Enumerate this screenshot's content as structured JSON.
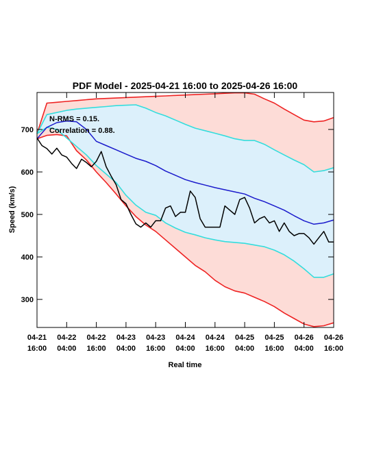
{
  "chart_data": {
    "type": "line",
    "title": "PDF Model - 2025-04-21 16:00 to 2025-04-26 16:00",
    "xlabel": "Real time",
    "ylabel": "Speed (km/s)",
    "annotations": [
      "N-RMS = 0.15.",
      "Correlation = 0.88."
    ],
    "xlim": [
      0,
      120
    ],
    "xticks": [
      {
        "value": 0,
        "label": "04-21 16:00"
      },
      {
        "value": 12,
        "label": "04-22 04:00"
      },
      {
        "value": 24,
        "label": "04-22 16:00"
      },
      {
        "value": 36,
        "label": "04-23 04:00"
      },
      {
        "value": 48,
        "label": "04-23 16:00"
      },
      {
        "value": 60,
        "label": "04-24 04:00"
      },
      {
        "value": 72,
        "label": "04-24 16:00"
      },
      {
        "value": 84,
        "label": "04-25 04:00"
      },
      {
        "value": 96,
        "label": "04-25 16:00"
      },
      {
        "value": 108,
        "label": "04-26 04:00"
      },
      {
        "value": 120,
        "label": "04-26 16:00"
      }
    ],
    "ylim": [
      234,
      787
    ],
    "yticks": [
      300,
      400,
      500,
      600,
      700
    ],
    "bands": [
      {
        "fill": "#fddcd7",
        "color": "#ee2222",
        "x": [
          0,
          4,
          8,
          12,
          16,
          20,
          24,
          28,
          32,
          36,
          40,
          44,
          48,
          52,
          56,
          60,
          64,
          68,
          72,
          76,
          80,
          84,
          88,
          92,
          96,
          100,
          104,
          108,
          112,
          116,
          120
        ],
        "upper": [
          690,
          762,
          764,
          766,
          768,
          770,
          772,
          773,
          774,
          775,
          776,
          777,
          778,
          779,
          780,
          781,
          782,
          783,
          784,
          785,
          786,
          786,
          783,
          772,
          762,
          748,
          735,
          722,
          718,
          720,
          728
        ],
        "lower": [
          678,
          686,
          688,
          685,
          650,
          628,
          600,
          575,
          548,
          520,
          495,
          475,
          460,
          440,
          420,
          400,
          380,
          365,
          345,
          330,
          320,
          315,
          305,
          295,
          283,
          268,
          255,
          242,
          236,
          238,
          245
        ]
      },
      {
        "fill": "#dcf0fb",
        "color": "#33dddd",
        "x": [
          0,
          4,
          8,
          12,
          16,
          20,
          24,
          28,
          32,
          36,
          40,
          44,
          48,
          52,
          56,
          60,
          64,
          68,
          72,
          76,
          80,
          84,
          88,
          92,
          96,
          100,
          104,
          108,
          112,
          116,
          120
        ],
        "upper": [
          690,
          735,
          740,
          745,
          748,
          750,
          752,
          754,
          756,
          757,
          758,
          750,
          740,
          732,
          722,
          712,
          703,
          697,
          691,
          685,
          678,
          674,
          674,
          665,
          652,
          640,
          628,
          617,
          600,
          603,
          610
        ],
        "lower": [
          690,
          705,
          700,
          680,
          660,
          640,
          615,
          595,
          575,
          545,
          522,
          505,
          498,
          480,
          468,
          458,
          452,
          445,
          440,
          436,
          434,
          432,
          428,
          424,
          416,
          405,
          390,
          372,
          352,
          352,
          360
        ]
      }
    ],
    "series": [
      {
        "color": "#1a1acc",
        "x": [
          0,
          4,
          8,
          12,
          16,
          20,
          24,
          28,
          32,
          36,
          40,
          44,
          48,
          52,
          56,
          60,
          64,
          68,
          72,
          76,
          80,
          84,
          88,
          92,
          96,
          100,
          104,
          108,
          112,
          116,
          120
        ],
        "values": [
          678,
          705,
          716,
          720,
          718,
          700,
          672,
          662,
          652,
          642,
          632,
          625,
          615,
          602,
          592,
          582,
          575,
          569,
          563,
          558,
          553,
          548,
          538,
          530,
          520,
          510,
          497,
          485,
          477,
          480,
          487
        ]
      },
      {
        "color": "#000000",
        "x": [
          0,
          2,
          4,
          6,
          8,
          10,
          12,
          14,
          16,
          18,
          20,
          22,
          24,
          26,
          28,
          30,
          32,
          34,
          36,
          38,
          40,
          42,
          44,
          46,
          48,
          50,
          52,
          54,
          56,
          58,
          60,
          62,
          64,
          66,
          68,
          70,
          72,
          74,
          76,
          78,
          80,
          82,
          84,
          86,
          88,
          90,
          92,
          94,
          96,
          98,
          100,
          102,
          104,
          106,
          108,
          110,
          112,
          114,
          116,
          118,
          120
        ],
        "values": [
          680,
          662,
          655,
          642,
          656,
          640,
          635,
          620,
          608,
          630,
          622,
          612,
          625,
          648,
          612,
          590,
          570,
          535,
          525,
          500,
          478,
          470,
          480,
          470,
          485,
          485,
          515,
          520,
          495,
          505,
          505,
          555,
          540,
          490,
          470,
          470,
          470,
          470,
          520,
          510,
          500,
          535,
          540,
          515,
          480,
          490,
          495,
          480,
          485,
          460,
          480,
          460,
          450,
          455,
          455,
          445,
          430,
          445,
          460,
          435,
          435
        ]
      }
    ]
  }
}
